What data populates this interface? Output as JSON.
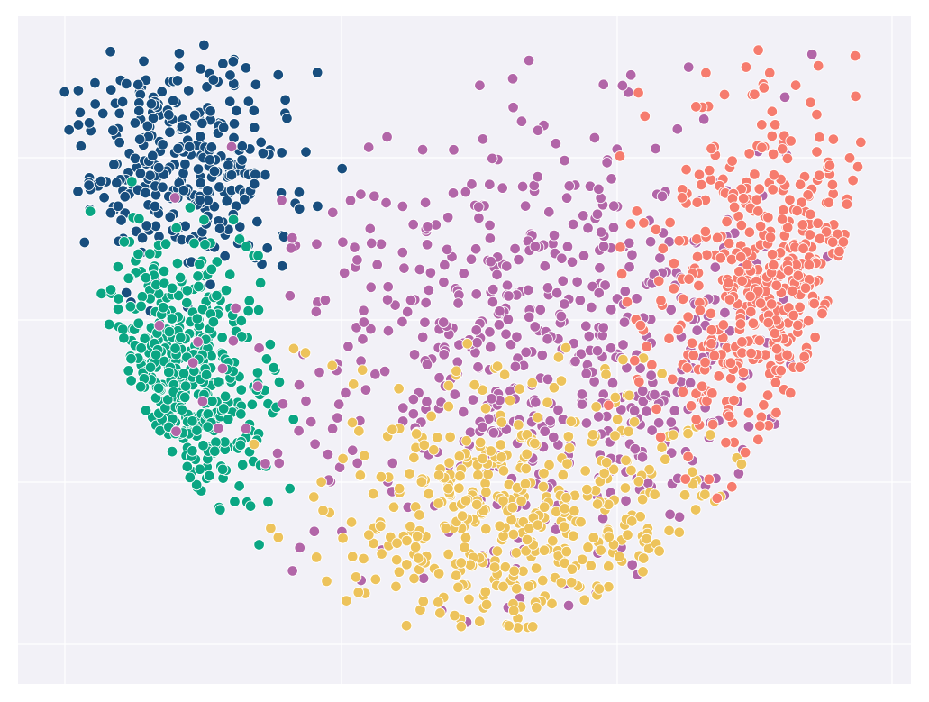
{
  "chart_data": {
    "type": "scatter",
    "title": "",
    "xlabel": "",
    "ylabel": "",
    "grid": true,
    "legend": "none",
    "xlim": [
      -0.2,
      2.3
    ],
    "ylim": [
      -0.05,
      2.0
    ],
    "background": "#f2f1f7",
    "marker_edge_color": "#ffffff",
    "clusters": [
      {
        "id": "navy",
        "color": "#184e7e",
        "center": [
          0.25,
          1.55
        ],
        "spread": [
          0.16,
          0.18
        ],
        "count": 330
      },
      {
        "id": "teal",
        "color": "#0aa683",
        "center": [
          0.25,
          0.85
        ],
        "spread": [
          0.12,
          0.24
        ],
        "count": 420
      },
      {
        "id": "purple",
        "color": "#b266a8",
        "center": [
          1.3,
          0.95
        ],
        "spread": [
          0.38,
          0.35
        ],
        "count": 640
      },
      {
        "id": "yellow",
        "color": "#edc35b",
        "center": [
          1.2,
          0.45
        ],
        "spread": [
          0.28,
          0.22
        ],
        "count": 460
      },
      {
        "id": "coral",
        "color": "#f67c6e",
        "center": [
          1.95,
          1.15
        ],
        "spread": [
          0.18,
          0.28
        ],
        "count": 470
      }
    ]
  }
}
